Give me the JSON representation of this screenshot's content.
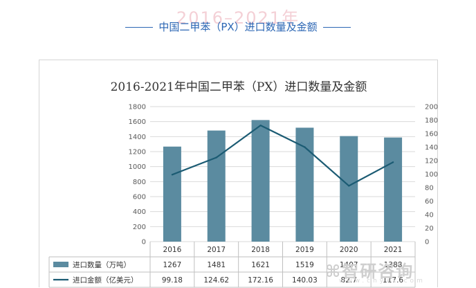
{
  "header": {
    "watermark": "2016–2021年",
    "title": "中国二甲苯（PX）进口数量及金额"
  },
  "logo": {
    "name": "智研咨询",
    "sub": "www.chyxx.com"
  },
  "chart_data": {
    "type": "bar",
    "title": "2016-2021年中国二甲苯（PX）进口数量及金额",
    "categories": [
      "2016",
      "2017",
      "2018",
      "2019",
      "2020",
      "2021"
    ],
    "series": [
      {
        "name": "进口数量（万吨）",
        "type": "bar",
        "axis": "left",
        "values": [
          1267,
          1481,
          1621,
          1519,
          1407,
          1388
        ]
      },
      {
        "name": "进口金额（亿美元）",
        "type": "line",
        "axis": "right",
        "values": [
          99.18,
          124.62,
          172.16,
          140.03,
          82.7,
          117.6
        ]
      }
    ],
    "value_labels": [
      [
        "1267",
        "1481",
        "1621",
        "1519",
        "1407",
        "1388"
      ],
      [
        "99.18",
        "124.62",
        "172.16",
        "140.03",
        "82.7",
        "117.6"
      ]
    ],
    "ylim_left": [
      0,
      1800
    ],
    "yticks_left": [
      0,
      200,
      400,
      600,
      800,
      1000,
      1200,
      1400,
      1600,
      1800
    ],
    "ylim_right": [
      0,
      200
    ],
    "yticks_right": [
      0,
      20,
      40,
      60,
      80,
      100,
      120,
      140,
      160,
      180,
      200
    ],
    "grid": true,
    "legend": "data-table-below",
    "colors": {
      "bar": "#5b8ba0",
      "line": "#1b5b73",
      "grid": "#d9d9d9",
      "text": "#404040"
    }
  }
}
